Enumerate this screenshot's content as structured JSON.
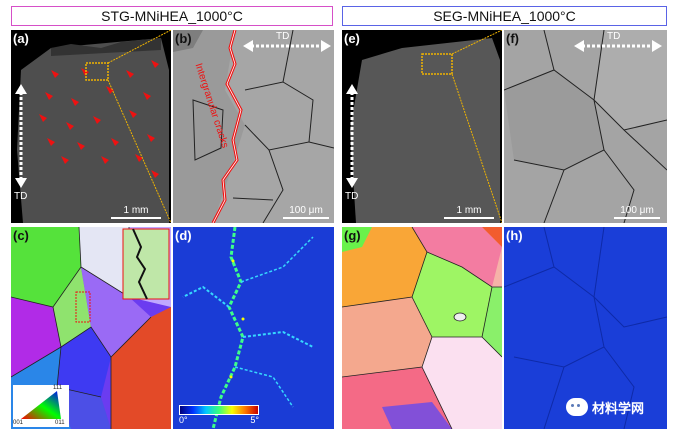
{
  "titles": {
    "left": "STG-MNiHEA_1000°C",
    "right": "SEG-MNiHEA_1000°C"
  },
  "panels": {
    "a": {
      "label": "(a)",
      "scale": "1 mm",
      "td": "TD"
    },
    "b": {
      "label": "(b)",
      "scale": "100 μm",
      "td": "TD",
      "annotation": "Intergranular cracks"
    },
    "c": {
      "label": "(c)",
      "ipf_corners": {
        "top": "111",
        "left": "001",
        "right": "011"
      }
    },
    "d": {
      "label": "(d)",
      "colorbar_min": "0°",
      "colorbar_max": "5°"
    },
    "e": {
      "label": "(e)",
      "scale": "1 mm",
      "td": "TD"
    },
    "f": {
      "label": "(f)",
      "scale": "100 μm",
      "td": "TD"
    },
    "g": {
      "label": "(g)"
    },
    "h": {
      "label": "(h)"
    }
  },
  "watermark": "材料学网",
  "colors": {
    "title_left_border": "#d64fc8",
    "title_right_border": "#5a63e6",
    "crack_red": "#e11111",
    "zoom_box": "#f0b400"
  }
}
